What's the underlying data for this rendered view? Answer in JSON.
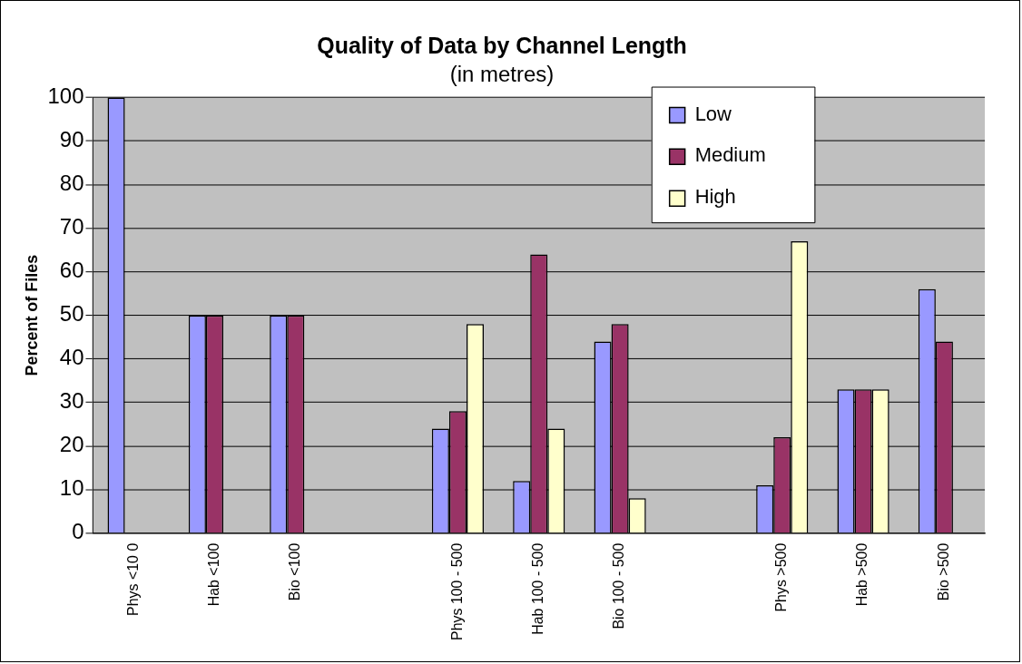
{
  "chart_data": {
    "type": "bar",
    "title": "Quality of Data by Channel Length",
    "subtitle": "(in metres)",
    "ylabel": "Percent of Files",
    "categories": [
      "Phys <10 0",
      "Hab <100",
      "Bio <100",
      null,
      "Phys 100 - 500",
      "Hab 100 - 500",
      "Bio 100 - 500",
      null,
      "Phys >500",
      "Hab >500",
      "Bio >500"
    ],
    "series": [
      {
        "name": "Low",
        "color": "#9999ff",
        "values": [
          100,
          50,
          50,
          null,
          24,
          12,
          44,
          null,
          11,
          33,
          56
        ]
      },
      {
        "name": "Medium",
        "color": "#993366",
        "values": [
          null,
          50,
          50,
          null,
          28,
          64,
          48,
          null,
          22,
          33,
          44
        ]
      },
      {
        "name": "High",
        "color": "#ffffcc",
        "values": [
          null,
          null,
          null,
          null,
          48,
          24,
          8,
          null,
          67,
          33,
          null
        ]
      }
    ],
    "ylim": [
      0,
      100
    ],
    "yticks": [
      0,
      10,
      20,
      30,
      40,
      50,
      60,
      70,
      80,
      90,
      100
    ],
    "grid": "y",
    "legend": "top right"
  }
}
